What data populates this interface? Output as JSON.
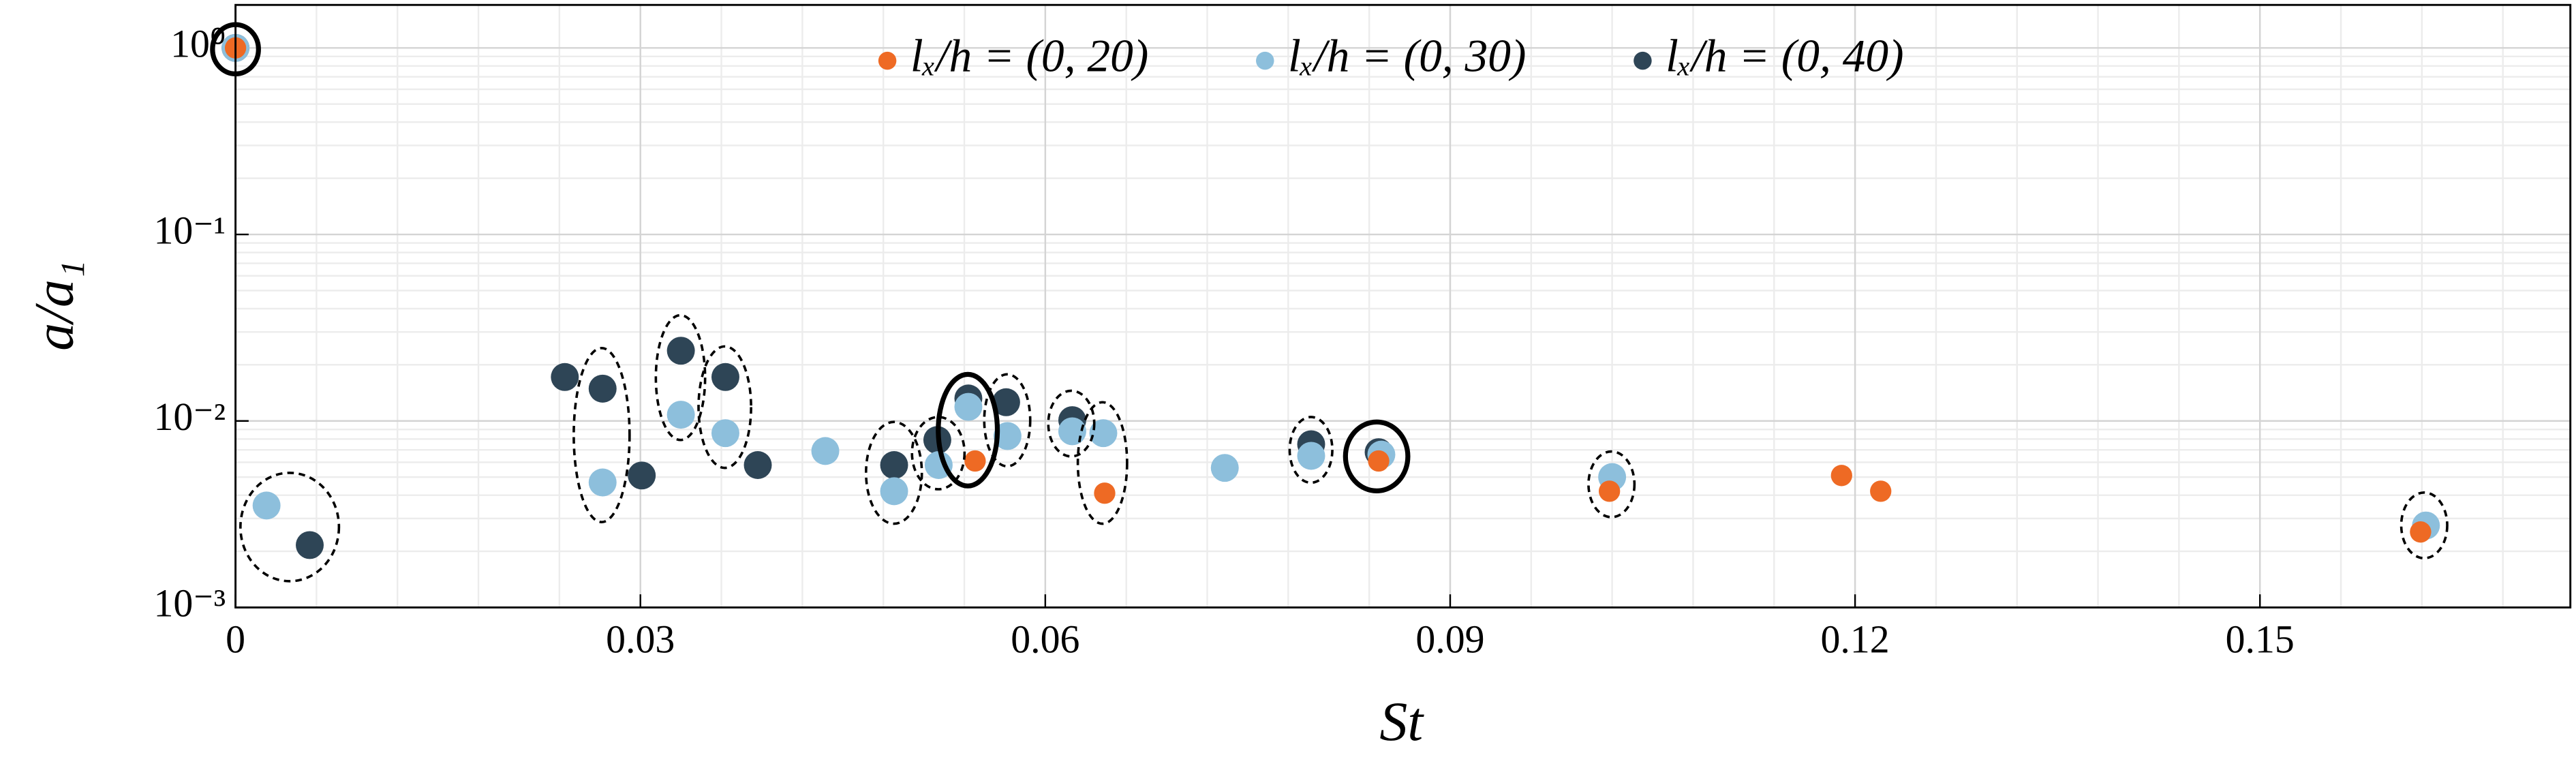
{
  "chart_data": {
    "type": "scatter",
    "x_label": "St",
    "y_label": "a/a₁",
    "xlim": [
      0,
      0.173
    ],
    "ylim": [
      0.001,
      1.7
    ],
    "log_y": true,
    "grid": true,
    "minor_grid": true,
    "legend": "top",
    "xticks": [
      0,
      0.03,
      0.06,
      0.09,
      0.12,
      0.15
    ],
    "yticks": [
      {
        "value": 0.001,
        "label": "10⁻³"
      },
      {
        "value": 0.01,
        "label": "10⁻²"
      },
      {
        "value": 0.1,
        "label": "10⁻¹"
      },
      {
        "value": 1,
        "label": "10⁰"
      }
    ],
    "series": [
      {
        "name": "lₓ/h = (0, 40)",
        "color": "#2e4556",
        "x": [
          0,
          0.0055,
          0.0244,
          0.0272,
          0.0301,
          0.033,
          0.0363,
          0.0387,
          0.0488,
          0.052,
          0.0543,
          0.0571,
          0.062,
          0.0797,
          0.0847
        ],
        "values": [
          1.0,
          0.00216,
          0.0172,
          0.0149,
          0.0051,
          0.0238,
          0.0172,
          0.0058,
          0.0058,
          0.0079,
          0.0132,
          0.0126,
          0.0101,
          0.0075,
          0.0068
        ]
      },
      {
        "name": "lₓ/h = (0, 30)",
        "color": "#8dbfdc",
        "x": [
          0,
          0.0023,
          0.0272,
          0.033,
          0.0363,
          0.0437,
          0.0488,
          0.0521,
          0.0543,
          0.0572,
          0.062,
          0.0643,
          0.0733,
          0.0797,
          0.0849,
          0.102,
          0.1623
        ],
        "values": [
          1.0,
          0.00352,
          0.00468,
          0.0108,
          0.0086,
          0.0069,
          0.0042,
          0.0058,
          0.0119,
          0.0083,
          0.0088,
          0.0086,
          0.0056,
          0.0065,
          0.0066,
          0.005,
          0.00275
        ]
      },
      {
        "name": "lₓ/h = (0, 20)",
        "color": "#ee6a24",
        "x": [
          0,
          0.0548,
          0.0644,
          0.0847,
          0.1018,
          0.119,
          0.1219,
          0.1619
        ],
        "values": [
          1.0,
          0.0061,
          0.0041,
          0.0061,
          0.0042,
          0.0051,
          0.0042,
          0.00254
        ]
      }
    ]
  }
}
